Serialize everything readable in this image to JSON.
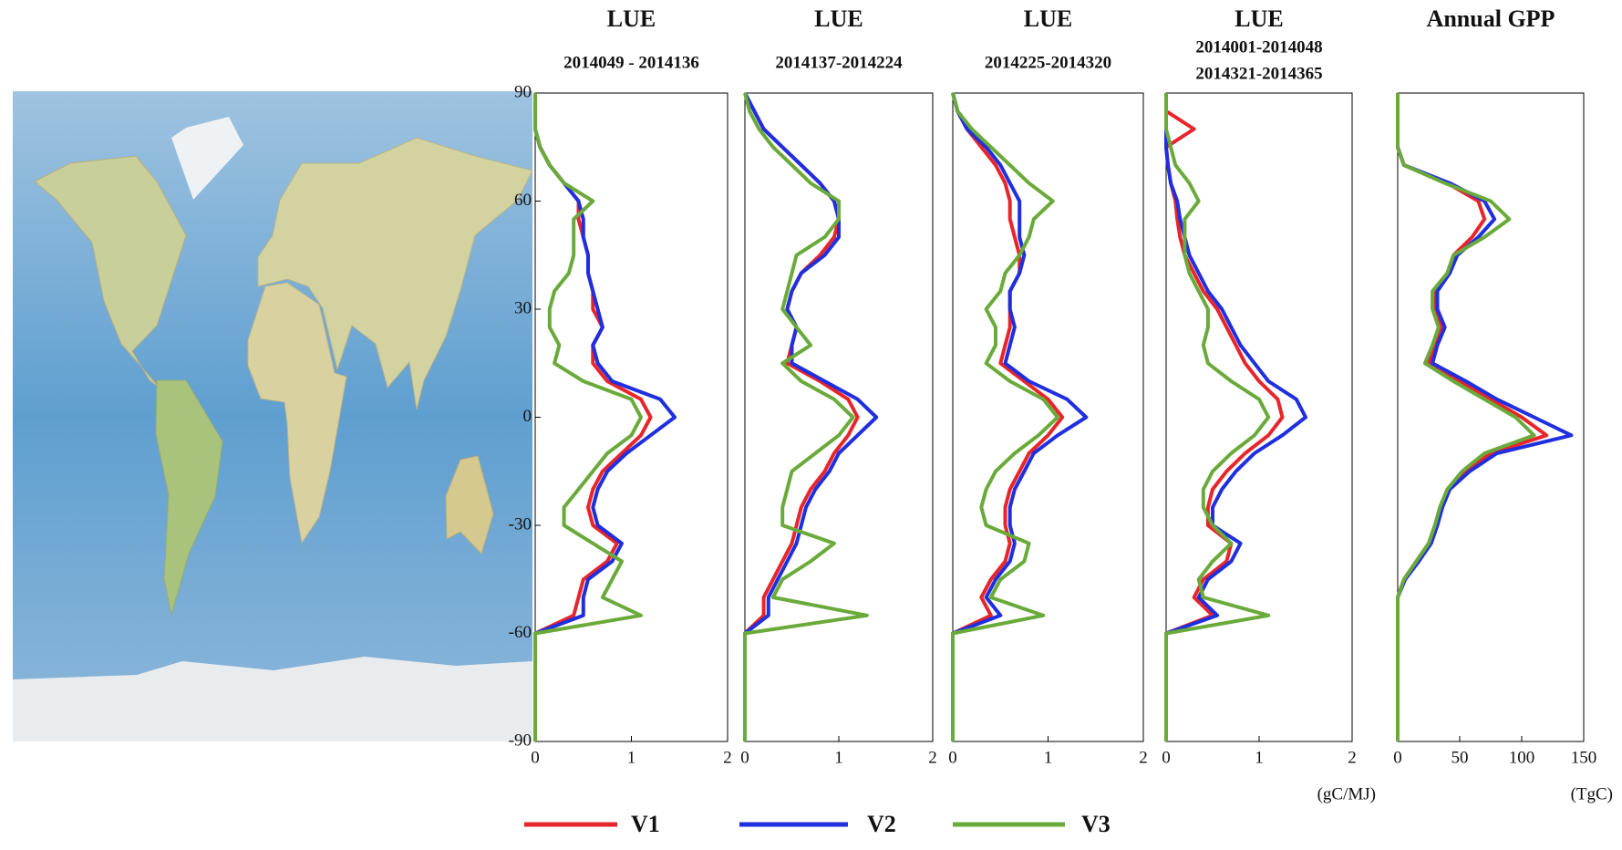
{
  "chart_data": [
    {
      "type": "line",
      "title": "LUE",
      "subtitle": "2014049 - 2014136",
      "y": [
        90,
        85,
        80,
        75,
        70,
        65,
        60,
        55,
        50,
        45,
        40,
        35,
        30,
        25,
        20,
        15,
        10,
        5,
        0,
        -5,
        -10,
        -15,
        -20,
        -25,
        -30,
        -35,
        -40,
        -45,
        -50,
        -55,
        -60,
        -65,
        -70,
        -75,
        -80,
        -85,
        -90
      ],
      "series": [
        {
          "name": "V1",
          "color": "#e8252a",
          "values": [
            0,
            0,
            0,
            0.05,
            0.15,
            0.3,
            0.45,
            0.45,
            0.5,
            0.55,
            0.55,
            0.6,
            0.6,
            0.7,
            0.6,
            0.6,
            0.75,
            1.1,
            1.2,
            1.1,
            0.9,
            0.7,
            0.6,
            0.55,
            0.6,
            0.85,
            0.75,
            0.5,
            0.45,
            0.4,
            0,
            0,
            0,
            0,
            0,
            0,
            0
          ]
        },
        {
          "name": "V2",
          "color": "#1f2fe0",
          "values": [
            0,
            0,
            0,
            0.05,
            0.15,
            0.3,
            0.45,
            0.5,
            0.5,
            0.55,
            0.55,
            0.6,
            0.65,
            0.7,
            0.6,
            0.65,
            0.8,
            1.3,
            1.45,
            1.2,
            0.95,
            0.75,
            0.65,
            0.6,
            0.65,
            0.9,
            0.8,
            0.55,
            0.5,
            0.5,
            0,
            0,
            0,
            0,
            0,
            0,
            0
          ]
        },
        {
          "name": "V3",
          "color": "#6aaa3a",
          "values": [
            0,
            0,
            0,
            0.05,
            0.15,
            0.3,
            0.6,
            0.4,
            0.4,
            0.4,
            0.35,
            0.2,
            0.15,
            0.15,
            0.25,
            0.2,
            0.5,
            1.0,
            1.1,
            1.0,
            0.75,
            0.6,
            0.45,
            0.3,
            0.3,
            0.6,
            0.9,
            0.8,
            0.7,
            1.1,
            0,
            0,
            0,
            0,
            0,
            0,
            0
          ]
        }
      ],
      "xlim": [
        0,
        2
      ],
      "xticks": [
        0,
        1,
        2
      ],
      "ylim": [
        -90,
        90
      ],
      "yticks": [
        90,
        60,
        30,
        0,
        -30,
        -60,
        -90
      ]
    },
    {
      "type": "line",
      "title": "LUE",
      "subtitle": "2014137-2014224",
      "y": [
        90,
        85,
        80,
        75,
        70,
        65,
        60,
        55,
        50,
        45,
        40,
        35,
        30,
        25,
        20,
        15,
        10,
        5,
        0,
        -5,
        -10,
        -15,
        -20,
        -25,
        -30,
        -35,
        -40,
        -45,
        -50,
        -55,
        -60,
        -65,
        -70,
        -75,
        -80,
        -85,
        -90
      ],
      "series": [
        {
          "name": "V1",
          "color": "#e8252a",
          "values": [
            0,
            0.1,
            0.2,
            0.4,
            0.6,
            0.8,
            0.95,
            1.0,
            0.95,
            0.8,
            0.6,
            0.5,
            0.45,
            0.55,
            0.5,
            0.45,
            0.8,
            1.1,
            1.2,
            1.1,
            0.95,
            0.85,
            0.7,
            0.6,
            0.55,
            0.5,
            0.4,
            0.3,
            0.2,
            0.2,
            0,
            0,
            0,
            0,
            0,
            0,
            0
          ]
        },
        {
          "name": "V2",
          "color": "#1f2fe0",
          "values": [
            0,
            0.1,
            0.2,
            0.4,
            0.6,
            0.8,
            0.95,
            1.0,
            1.0,
            0.85,
            0.6,
            0.5,
            0.45,
            0.55,
            0.5,
            0.5,
            0.85,
            1.2,
            1.4,
            1.2,
            1.0,
            0.9,
            0.75,
            0.65,
            0.6,
            0.55,
            0.45,
            0.35,
            0.25,
            0.25,
            0,
            0,
            0,
            0,
            0,
            0,
            0
          ]
        },
        {
          "name": "V3",
          "color": "#6aaa3a",
          "values": [
            0,
            0.05,
            0.15,
            0.3,
            0.5,
            0.7,
            1.0,
            1.0,
            0.85,
            0.55,
            0.5,
            0.45,
            0.4,
            0.55,
            0.7,
            0.4,
            0.6,
            0.95,
            1.15,
            1.0,
            0.75,
            0.5,
            0.45,
            0.4,
            0.4,
            0.95,
            0.7,
            0.4,
            0.3,
            1.3,
            0,
            0,
            0,
            0,
            0,
            0,
            0
          ]
        }
      ],
      "xlim": [
        0,
        2
      ],
      "xticks": [
        0,
        1,
        2
      ],
      "ylim": [
        -90,
        90
      ]
    },
    {
      "type": "line",
      "title": "LUE",
      "subtitle": "2014225-2014320",
      "y": [
        90,
        85,
        80,
        75,
        70,
        65,
        60,
        55,
        50,
        45,
        40,
        35,
        30,
        25,
        20,
        15,
        10,
        5,
        0,
        -5,
        -10,
        -15,
        -20,
        -25,
        -30,
        -35,
        -40,
        -45,
        -50,
        -55,
        -60,
        -65,
        -70,
        -75,
        -80,
        -85,
        -90
      ],
      "series": [
        {
          "name": "V1",
          "color": "#e8252a",
          "values": [
            0,
            0.05,
            0.15,
            0.3,
            0.45,
            0.55,
            0.6,
            0.6,
            0.65,
            0.7,
            0.7,
            0.6,
            0.6,
            0.6,
            0.55,
            0.5,
            0.75,
            1.0,
            1.15,
            1.0,
            0.8,
            0.7,
            0.6,
            0.55,
            0.55,
            0.6,
            0.55,
            0.4,
            0.3,
            0.4,
            0,
            0,
            0,
            0,
            0,
            0,
            0
          ]
        },
        {
          "name": "V2",
          "color": "#1f2fe0",
          "values": [
            0,
            0.05,
            0.15,
            0.35,
            0.5,
            0.6,
            0.7,
            0.7,
            0.7,
            0.75,
            0.7,
            0.6,
            0.6,
            0.65,
            0.6,
            0.55,
            0.8,
            1.2,
            1.4,
            1.1,
            0.85,
            0.75,
            0.65,
            0.6,
            0.6,
            0.65,
            0.6,
            0.45,
            0.35,
            0.5,
            0,
            0,
            0,
            0,
            0,
            0,
            0
          ]
        },
        {
          "name": "V3",
          "color": "#6aaa3a",
          "values": [
            0,
            0.05,
            0.2,
            0.4,
            0.6,
            0.8,
            1.05,
            0.85,
            0.8,
            0.7,
            0.55,
            0.5,
            0.35,
            0.45,
            0.45,
            0.35,
            0.6,
            0.95,
            1.1,
            0.9,
            0.65,
            0.45,
            0.35,
            0.3,
            0.35,
            0.8,
            0.75,
            0.5,
            0.4,
            0.95,
            0,
            0,
            0,
            0,
            0,
            0,
            0
          ]
        }
      ],
      "xlim": [
        0,
        2
      ],
      "xticks": [
        0,
        1,
        2
      ],
      "ylim": [
        -90,
        90
      ]
    },
    {
      "type": "line",
      "title": "LUE",
      "subtitle": [
        "2014001-2014048",
        "2014321-2014365"
      ],
      "y": [
        90,
        85,
        80,
        75,
        70,
        65,
        60,
        55,
        50,
        45,
        40,
        35,
        30,
        25,
        20,
        15,
        10,
        5,
        0,
        -5,
        -10,
        -15,
        -20,
        -25,
        -30,
        -35,
        -40,
        -45,
        -50,
        -55,
        -60,
        -65,
        -70,
        -75,
        -80,
        -85,
        -90
      ],
      "series": [
        {
          "name": "V1",
          "color": "#e8252a",
          "values": [
            0,
            0,
            0.3,
            0,
            0.02,
            0.05,
            0.1,
            0.12,
            0.15,
            0.2,
            0.3,
            0.4,
            0.55,
            0.65,
            0.75,
            0.85,
            1.0,
            1.2,
            1.25,
            1.1,
            0.85,
            0.65,
            0.5,
            0.45,
            0.45,
            0.7,
            0.65,
            0.4,
            0.3,
            0.5,
            0,
            0,
            0,
            0,
            0,
            0,
            0
          ]
        },
        {
          "name": "V2",
          "color": "#1f2fe0",
          "values": [
            0,
            0,
            0,
            0,
            0.02,
            0.05,
            0.12,
            0.15,
            0.2,
            0.25,
            0.35,
            0.45,
            0.6,
            0.7,
            0.8,
            0.95,
            1.1,
            1.4,
            1.5,
            1.25,
            0.95,
            0.75,
            0.6,
            0.5,
            0.5,
            0.8,
            0.7,
            0.45,
            0.35,
            0.55,
            0,
            0,
            0,
            0,
            0,
            0,
            0
          ]
        },
        {
          "name": "V3",
          "color": "#6aaa3a",
          "values": [
            0,
            0,
            0,
            0.05,
            0.1,
            0.25,
            0.35,
            0.2,
            0.2,
            0.2,
            0.25,
            0.35,
            0.45,
            0.45,
            0.4,
            0.45,
            0.7,
            1.0,
            1.1,
            0.95,
            0.7,
            0.5,
            0.4,
            0.4,
            0.5,
            0.7,
            0.5,
            0.35,
            0.4,
            1.1,
            0,
            0,
            0,
            0,
            0,
            0,
            0
          ]
        }
      ],
      "xlim": [
        0,
        2
      ],
      "xticks": [
        0,
        1,
        2
      ],
      "ylim": [
        -90,
        90
      ],
      "xlabel": "(gC/MJ)"
    },
    {
      "type": "line",
      "title": "Annual GPP",
      "y": [
        90,
        85,
        80,
        75,
        70,
        65,
        60,
        55,
        50,
        45,
        40,
        35,
        30,
        25,
        20,
        15,
        10,
        5,
        0,
        -5,
        -10,
        -15,
        -20,
        -25,
        -30,
        -35,
        -40,
        -45,
        -50,
        -55,
        -60,
        -65,
        -70,
        -75,
        -80,
        -85,
        -90
      ],
      "series": [
        {
          "name": "V1",
          "color": "#e8252a",
          "values": [
            0,
            0,
            0,
            0,
            5,
            40,
            65,
            70,
            60,
            45,
            40,
            30,
            30,
            35,
            30,
            25,
            50,
            75,
            100,
            120,
            75,
            55,
            40,
            35,
            30,
            25,
            15,
            5,
            0,
            0,
            0,
            0,
            0,
            0,
            0,
            0,
            0
          ]
        },
        {
          "name": "V2",
          "color": "#1f2fe0",
          "values": [
            0,
            0,
            0,
            0,
            5,
            42,
            70,
            78,
            65,
            48,
            42,
            32,
            32,
            38,
            32,
            28,
            55,
            80,
            110,
            140,
            80,
            58,
            42,
            36,
            32,
            27,
            17,
            6,
            0,
            0,
            0,
            0,
            0,
            0,
            0,
            0,
            0
          ]
        },
        {
          "name": "V3",
          "color": "#6aaa3a",
          "values": [
            0,
            0,
            0,
            0,
            5,
            38,
            75,
            90,
            70,
            45,
            40,
            28,
            28,
            33,
            28,
            22,
            45,
            70,
            95,
            110,
            70,
            52,
            40,
            34,
            30,
            25,
            15,
            5,
            0,
            0,
            0,
            0,
            0,
            0,
            0,
            0,
            0
          ]
        }
      ],
      "xlim": [
        0,
        150
      ],
      "xticks": [
        0,
        50,
        100,
        150
      ],
      "ylim": [
        -90,
        90
      ],
      "xlabel": "(TgC)"
    }
  ]
}
